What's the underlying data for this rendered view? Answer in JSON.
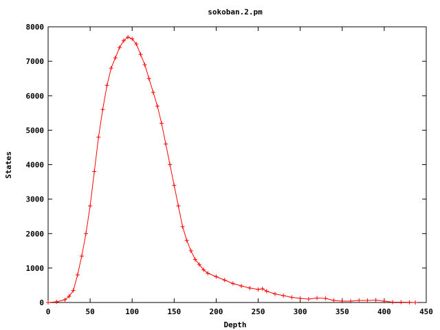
{
  "chart_data": {
    "type": "line",
    "title": "sokoban.2.pm",
    "xlabel": "Depth",
    "ylabel": "States",
    "xlim": [
      0,
      450
    ],
    "ylim": [
      0,
      8000
    ],
    "xticks": [
      "0",
      "50",
      "100",
      "150",
      "200",
      "250",
      "300",
      "350",
      "400",
      "450"
    ],
    "yticks": [
      "0",
      "1000",
      "2000",
      "3000",
      "4000",
      "5000",
      "6000",
      "7000",
      "8000"
    ],
    "grid": false,
    "legend": "none",
    "marker": "plus",
    "series_color": "#ff0000",
    "x": [
      0,
      10,
      20,
      25,
      30,
      35,
      40,
      45,
      50,
      55,
      60,
      65,
      70,
      75,
      80,
      85,
      90,
      95,
      100,
      105,
      110,
      115,
      120,
      125,
      130,
      135,
      140,
      145,
      150,
      155,
      160,
      165,
      170,
      175,
      180,
      185,
      190,
      200,
      210,
      220,
      230,
      240,
      250,
      255,
      260,
      270,
      280,
      290,
      300,
      310,
      320,
      330,
      340,
      350,
      360,
      370,
      380,
      390,
      400,
      410,
      420,
      430,
      437
    ],
    "y": [
      0,
      20,
      80,
      180,
      350,
      800,
      1350,
      2000,
      2800,
      3800,
      4800,
      5600,
      6300,
      6800,
      7100,
      7400,
      7600,
      7700,
      7650,
      7500,
      7200,
      6900,
      6500,
      6100,
      5700,
      5200,
      4600,
      4000,
      3400,
      2800,
      2200,
      1800,
      1500,
      1250,
      1100,
      950,
      850,
      750,
      650,
      550,
      480,
      420,
      380,
      400,
      330,
      250,
      200,
      150,
      120,
      100,
      130,
      120,
      60,
      40,
      40,
      60,
      60,
      70,
      40,
      10,
      10,
      5,
      0
    ]
  }
}
